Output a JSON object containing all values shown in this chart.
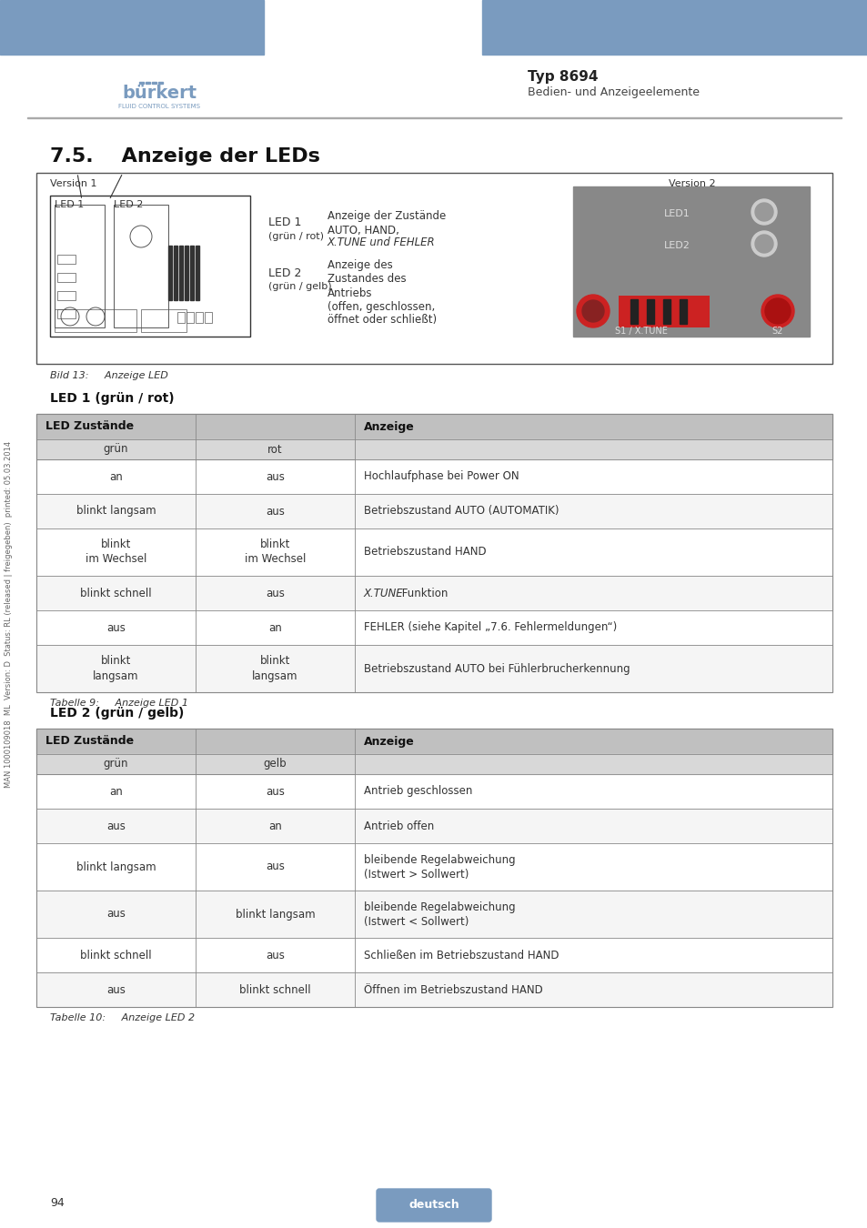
{
  "page_title": "Typ 8694",
  "page_subtitle": "Bedien- und Anzeigeelemente",
  "section_title": "7.5.    Anzeige der LEDs",
  "header_blue": "#7a9bbf",
  "background": "#ffffff",
  "sidebar_text": "MAN 1000109018  ML  Version: D  Status: RL (released | freigegeben)  printed: 05.03.2014",
  "figure_caption": "Bild 13:     Anzeige LED",
  "table1_label": "LED 1 (grün / rot)",
  "table1_caption": "Tabelle 9:     Anzeige LED 1",
  "table2_label": "LED 2 (grün / gelb)",
  "table2_caption": "Tabelle 10:     Anzeige LED 2",
  "table1_header": [
    "LED Zustände",
    "",
    "Anzeige"
  ],
  "table1_subheader": [
    "grün",
    "rot",
    ""
  ],
  "table1_rows": [
    [
      "an",
      "aus",
      "Hochlaufphase bei Power ON"
    ],
    [
      "blinkt langsam",
      "aus",
      "Betriebszustand AUTO (AUTOMATIK)"
    ],
    [
      "blinkt\nim Wechsel",
      "blinkt\nim Wechsel",
      "Betriebszustand HAND"
    ],
    [
      "blinkt schnell",
      "aus",
      "X.TUNE Funktion"
    ],
    [
      "aus",
      "an",
      "FEHLER (siehe Kapitel „7.6. Fehlermeldungen“)"
    ],
    [
      "blinkt\nlangsam",
      "blinkt\nlangsam",
      "Betriebszustand AUTO bei Fühlerbrucherkennung"
    ]
  ],
  "table2_header": [
    "LED Zustände",
    "",
    "Anzeige"
  ],
  "table2_subheader": [
    "grün",
    "gelb",
    ""
  ],
  "table2_rows": [
    [
      "an",
      "aus",
      "Antrieb geschlossen"
    ],
    [
      "aus",
      "an",
      "Antrieb offen"
    ],
    [
      "blinkt langsam",
      "aus",
      "bleibende Regelabweichung\n(Istwert > Sollwert)"
    ],
    [
      "aus",
      "blinkt langsam",
      "bleibende Regelabweichung\n(Istwert < Sollwert)"
    ],
    [
      "blinkt schnell",
      "aus",
      "Schließen im Betriebszustand HAND"
    ],
    [
      "aus",
      "blinkt schnell",
      "Öffnen im Betriebszustand HAND"
    ]
  ],
  "table_header_bg": "#c0c0c0",
  "table_subheader_bg": "#d8d8d8",
  "table_row_bg1": "#ffffff",
  "table_row_bg2": "#f5f5f5",
  "table_border": "#888888",
  "page_number": "94",
  "footer_text": "deutsch",
  "footer_bg": "#7a9bbf"
}
